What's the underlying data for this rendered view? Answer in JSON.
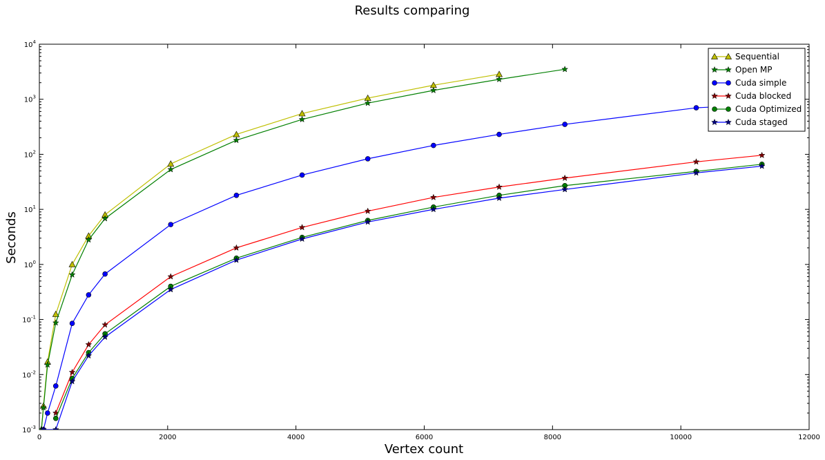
{
  "chart_data": {
    "type": "line",
    "title": "Results comparing",
    "xlabel": "Vertex count",
    "ylabel": "Seconds",
    "xlim": [
      0,
      12000
    ],
    "ylim": [
      0.001,
      10000
    ],
    "yscale": "log",
    "grid": false,
    "legend_position": "top-right",
    "x_ticks": [
      0,
      2000,
      4000,
      6000,
      8000,
      10000,
      12000
    ],
    "x_tick_labels": [
      "0",
      "2000",
      "4000",
      "6000",
      "8000",
      "10000",
      "12000"
    ],
    "y_ticks": [
      0.001,
      0.01,
      0.1,
      1,
      10,
      100,
      1000,
      10000
    ],
    "y_tick_labels": [
      {
        "base": "10",
        "exp": "-3"
      },
      {
        "base": "10",
        "exp": "-2"
      },
      {
        "base": "10",
        "exp": "-1"
      },
      {
        "base": "10",
        "exp": "0"
      },
      {
        "base": "10",
        "exp": "1"
      },
      {
        "base": "10",
        "exp": "2"
      },
      {
        "base": "10",
        "exp": "3"
      },
      {
        "base": "10",
        "exp": "4"
      }
    ],
    "series": [
      {
        "name": "Sequential",
        "color": "#bfbf00",
        "marker": "triangle",
        "marker_fill": "#bfbf00",
        "x": [
          32,
          64,
          128,
          256,
          512,
          768,
          1024,
          2048,
          3072,
          4096,
          5120,
          6144,
          7168
        ],
        "y": [
          0.001,
          0.0027,
          0.017,
          0.125,
          1.0,
          3.3,
          8.0,
          67,
          230,
          550,
          1050,
          1800,
          2850
        ]
      },
      {
        "name": "Open MP",
        "color": "#007f00",
        "marker": "star",
        "marker_fill": "#007f00",
        "x": [
          32,
          64,
          128,
          256,
          512,
          768,
          1024,
          2048,
          3072,
          4096,
          5120,
          6144,
          7168,
          8192
        ],
        "y": [
          0.001,
          0.0025,
          0.015,
          0.087,
          0.65,
          2.8,
          6.8,
          53,
          180,
          430,
          850,
          1450,
          2300,
          3500
        ]
      },
      {
        "name": "Cuda simple",
        "color": "#0000ff",
        "marker": "circle",
        "marker_fill": "#0000ff",
        "x": [
          64,
          128,
          256,
          512,
          768,
          1024,
          2048,
          3072,
          4096,
          5120,
          6144,
          7168,
          8192,
          10240,
          11264
        ],
        "y": [
          0.001,
          0.002,
          0.0062,
          0.085,
          0.28,
          0.67,
          5.3,
          18,
          42,
          83,
          145,
          230,
          350,
          700,
          800
        ]
      },
      {
        "name": "Cuda blocked",
        "color": "#ff0000",
        "marker": "star",
        "marker_fill": "#7f0000",
        "x": [
          256,
          512,
          768,
          1024,
          2048,
          3072,
          4096,
          5120,
          6144,
          7168,
          8192,
          10240,
          11264
        ],
        "y": [
          0.002,
          0.011,
          0.035,
          0.08,
          0.6,
          2.0,
          4.7,
          9.3,
          16.5,
          25.5,
          37,
          73,
          96
        ]
      },
      {
        "name": "Cuda Optimized",
        "color": "#007f00",
        "marker": "circle",
        "marker_fill": "#007f00",
        "x": [
          256,
          512,
          768,
          1024,
          2048,
          3072,
          4096,
          5120,
          6144,
          7168,
          8192,
          10240,
          11264
        ],
        "y": [
          0.0016,
          0.0085,
          0.025,
          0.055,
          0.4,
          1.3,
          3.1,
          6.3,
          11,
          18,
          27,
          49,
          66
        ]
      },
      {
        "name": "Cuda staged",
        "color": "#0000ff",
        "marker": "star",
        "marker_fill": "#00007f",
        "x": [
          64,
          256,
          512,
          768,
          1024,
          2048,
          3072,
          4096,
          5120,
          6144,
          7168,
          8192,
          10240,
          11264
        ],
        "y": [
          0.001,
          0.001,
          0.0075,
          0.022,
          0.048,
          0.35,
          1.2,
          2.9,
          5.9,
          10,
          16,
          23,
          46,
          61
        ]
      }
    ]
  }
}
